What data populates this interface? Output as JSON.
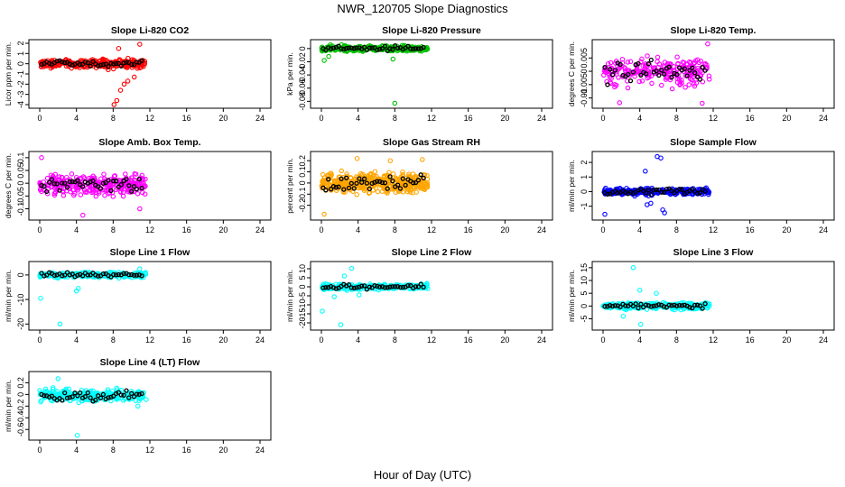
{
  "figure": {
    "title": "NWR_120705  Slope Diagnostics",
    "xlabel": "Hour of Day (UTC)"
  },
  "chart_data": [
    {
      "type": "scatter",
      "title": "Slope Li-820 CO2",
      "ylabel": "Licor ppm per min.",
      "xlim": [
        0,
        24
      ],
      "ylim": [
        -4,
        2
      ],
      "xticks": [
        0,
        4,
        8,
        12,
        16,
        20,
        24
      ],
      "yticks": [
        -4,
        -3,
        -2,
        -1,
        0,
        1,
        2
      ],
      "color": "#ff0000",
      "n": 300,
      "center": 0.0,
      "spread": 0.4,
      "mean_spread": 0.25,
      "x_range": [
        0,
        11.6
      ],
      "outliers": [
        [
          8.1,
          -4.0
        ],
        [
          8.4,
          -3.6
        ],
        [
          8.8,
          -2.6
        ],
        [
          9.6,
          -1.7
        ],
        [
          10.3,
          -1.3
        ],
        [
          9.2,
          -2.0
        ],
        [
          10.9,
          1.9
        ],
        [
          8.6,
          1.5
        ]
      ]
    },
    {
      "type": "scatter",
      "title": "Slope Li-820 Pressure",
      "ylabel": "kPa per min.",
      "xlim": [
        0,
        24
      ],
      "ylim": [
        -0.085,
        0.008
      ],
      "xticks": [
        0,
        4,
        8,
        12,
        16,
        20,
        24
      ],
      "yticks": [
        -0.08,
        -0.06,
        -0.04,
        -0.02,
        0.0
      ],
      "color": "#00c000",
      "n": 260,
      "center": 0.0,
      "spread": 0.004,
      "mean_spread": 0.003,
      "x_range": [
        0,
        11.6
      ],
      "outliers": [
        [
          8.0,
          -0.083
        ],
        [
          0.3,
          -0.018
        ],
        [
          0.8,
          -0.012
        ],
        [
          7.8,
          -0.016
        ],
        [
          2.2,
          0.006
        ]
      ]
    },
    {
      "type": "scatter",
      "title": "Slope Li-820 Temp.",
      "ylabel": "degrees C per min.",
      "xlim": [
        0,
        24
      ],
      "ylim": [
        -0.0125,
        0.0105
      ],
      "xticks": [
        0,
        4,
        8,
        12,
        16,
        20,
        24
      ],
      "yticks": [
        -0.01,
        -0.005,
        0.0,
        0.005
      ],
      "color": "#ff00ff",
      "n": 240,
      "center": 0.0,
      "spread": 0.005,
      "mean_spread": 0.004,
      "x_range": [
        0,
        11.6
      ],
      "outliers": [
        [
          11.4,
          0.0103
        ],
        [
          1.8,
          -0.0118
        ],
        [
          10.8,
          -0.012
        ]
      ]
    },
    {
      "type": "scatter",
      "title": "Slope Amb. Box Temp.",
      "ylabel": "degrees C per min.",
      "xlim": [
        0,
        24
      ],
      "ylim": [
        -0.13,
        0.11
      ],
      "xticks": [
        0,
        4,
        8,
        12,
        16,
        20,
        24
      ],
      "yticks": [
        -0.1,
        -0.05,
        0.0,
        0.05,
        0.1
      ],
      "color": "#ff00ff",
      "n": 300,
      "center": -0.005,
      "spread": 0.04,
      "mean_spread": 0.03,
      "x_range": [
        0,
        11.6
      ],
      "outliers": [
        [
          0.2,
          0.1
        ],
        [
          4.7,
          -0.125
        ],
        [
          10.9,
          -0.1
        ]
      ]
    },
    {
      "type": "scatter",
      "title": "Slope Gas Stream RH",
      "ylabel": "percent per min.",
      "xlim": [
        0,
        24
      ],
      "ylim": [
        -0.3,
        0.25
      ],
      "xticks": [
        0,
        4,
        8,
        12,
        16,
        20,
        24
      ],
      "yticks": [
        -0.2,
        -0.1,
        0.0,
        0.1,
        0.2
      ],
      "color": "#ffa500",
      "n": 420,
      "center": 0.0,
      "spread": 0.09,
      "mean_spread": 0.07,
      "x_range": [
        0,
        11.6
      ],
      "outliers": [
        [
          0.3,
          -0.28
        ],
        [
          3.9,
          0.22
        ],
        [
          7.5,
          0.2
        ],
        [
          11.0,
          0.21
        ]
      ]
    },
    {
      "type": "scatter",
      "title": "Slope Sample Flow",
      "ylabel": "ml/min per min.",
      "xlim": [
        0,
        24
      ],
      "ylim": [
        -1.7,
        2.5
      ],
      "xticks": [
        0,
        4,
        8,
        12,
        16,
        20,
        24
      ],
      "yticks": [
        -1,
        0,
        1,
        2
      ],
      "color": "#0000ff",
      "n": 280,
      "center": 0.0,
      "spread": 0.22,
      "mean_spread": 0.25,
      "x_range": [
        0,
        11.6
      ],
      "outliers": [
        [
          5.9,
          2.4
        ],
        [
          6.3,
          2.3
        ],
        [
          4.6,
          1.4
        ],
        [
          0.2,
          -1.55
        ],
        [
          6.7,
          -1.45
        ],
        [
          6.5,
          -1.25
        ],
        [
          4.8,
          -0.9
        ],
        [
          5.2,
          -0.8
        ]
      ]
    },
    {
      "type": "scatter",
      "title": "Slope Line 1 Flow",
      "ylabel": "ml/min per min.",
      "xlim": [
        0,
        24
      ],
      "ylim": [
        -21,
        4
      ],
      "xticks": [
        0,
        4,
        8,
        12,
        16,
        20,
        24
      ],
      "yticks": [
        -20,
        -10,
        0
      ],
      "color": "#00ffff",
      "n": 280,
      "center": 0.0,
      "spread": 1.0,
      "mean_spread": 0.8,
      "x_range": [
        0,
        11.6
      ],
      "outliers": [
        [
          0.1,
          -9.5
        ],
        [
          2.2,
          -20
        ],
        [
          4.0,
          -6.5
        ],
        [
          4.2,
          -5.5
        ],
        [
          10.9,
          2.5
        ]
      ]
    },
    {
      "type": "scatter",
      "title": "Slope Line 2 Flow",
      "ylabel": "ml/min per min.",
      "xlim": [
        0,
        24
      ],
      "ylim": [
        -22,
        12
      ],
      "xticks": [
        0,
        4,
        8,
        12,
        16,
        20,
        24
      ],
      "yticks": [
        -20,
        -15,
        -10,
        -5,
        0,
        5,
        10
      ],
      "color": "#00ffff",
      "n": 280,
      "center": 0.0,
      "spread": 1.4,
      "mean_spread": 1.2,
      "x_range": [
        0,
        11.6
      ],
      "outliers": [
        [
          3.3,
          10.2
        ],
        [
          0.1,
          -13.5
        ],
        [
          2.1,
          -21
        ],
        [
          1.4,
          -5.5
        ],
        [
          4.1,
          -4.5
        ],
        [
          2.5,
          6.0
        ]
      ]
    },
    {
      "type": "scatter",
      "title": "Slope Line 3 Flow",
      "ylabel": "ml/min per min.",
      "xlim": [
        0,
        24
      ],
      "ylim": [
        -8,
        16
      ],
      "xticks": [
        0,
        4,
        8,
        12,
        16,
        20,
        24
      ],
      "yticks": [
        -5,
        0,
        5,
        10,
        15
      ],
      "color": "#00ffff",
      "n": 280,
      "center": 0.0,
      "spread": 1.2,
      "mean_spread": 1.0,
      "x_range": [
        0,
        11.6
      ],
      "outliers": [
        [
          3.3,
          15.0
        ],
        [
          4.1,
          -7.2
        ],
        [
          4.0,
          6.2
        ],
        [
          5.8,
          5.0
        ],
        [
          2.2,
          -4.0
        ]
      ]
    },
    {
      "type": "scatter",
      "title": "Slope Line 4 (LT) Flow",
      "ylabel": "ml/min per min.",
      "xlim": [
        0,
        24
      ],
      "ylim": [
        -0.72,
        0.33
      ],
      "xticks": [
        0,
        4,
        8,
        12,
        16,
        20,
        24
      ],
      "yticks": [
        -0.6,
        -0.4,
        -0.2,
        0.0,
        0.2
      ],
      "color": "#00ffff",
      "n": 300,
      "center": -0.02,
      "spread": 0.1,
      "mean_spread": 0.09,
      "x_range": [
        0,
        11.6
      ],
      "outliers": [
        [
          4.1,
          -0.7
        ],
        [
          2.0,
          0.27
        ],
        [
          10.7,
          -0.2
        ]
      ]
    }
  ]
}
